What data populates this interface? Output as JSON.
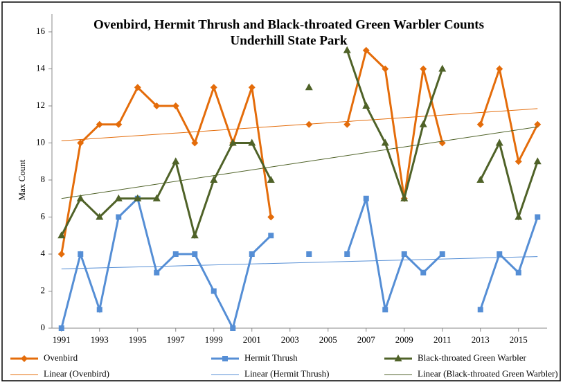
{
  "chart_data": {
    "type": "line",
    "title": "Ovenbird, Hermit Thrush and Black-throated Green Warbler Counts",
    "subtitle": "Underhill State Park",
    "y_label": "Max Count",
    "x": [
      1991,
      1992,
      1993,
      1994,
      1995,
      1996,
      1997,
      1998,
      1999,
      2000,
      2001,
      2002,
      2003,
      2004,
      2005,
      2006,
      2007,
      2008,
      2009,
      2010,
      2011,
      2012,
      2013,
      2014,
      2015,
      2016
    ],
    "series": [
      {
        "name": "Ovenbird",
        "color": "#e46c0a",
        "marker": "diamond",
        "trend_name": "Linear (Ovenbird)",
        "values": [
          4,
          10,
          11,
          11,
          13,
          12,
          12,
          10,
          13,
          10,
          13,
          6,
          null,
          11,
          null,
          11,
          15,
          14,
          7,
          14,
          10,
          null,
          11,
          14,
          9,
          11
        ]
      },
      {
        "name": "Hermit Thrush",
        "color": "#558ed5",
        "marker": "square",
        "trend_name": "Linear (Hermit Thrush)",
        "values": [
          0,
          4,
          1,
          6,
          7,
          3,
          4,
          4,
          2,
          0,
          4,
          5,
          null,
          4,
          null,
          4,
          7,
          1,
          4,
          3,
          4,
          null,
          1,
          4,
          3,
          6
        ]
      },
      {
        "name": "Black-throated Green Warbler",
        "color": "#4f6228",
        "marker": "triangle",
        "trend_name": "Linear (Black-throated Green Warbler)",
        "values": [
          5,
          7,
          6,
          7,
          7,
          7,
          9,
          5,
          8,
          10,
          10,
          8,
          null,
          13,
          null,
          15,
          12,
          10,
          7,
          11,
          14,
          null,
          8,
          10,
          6,
          9
        ]
      }
    ],
    "xlim": [
      1990.5,
      2016.5
    ],
    "xticks": [
      1991,
      1993,
      1995,
      1997,
      1999,
      2001,
      2003,
      2005,
      2007,
      2009,
      2011,
      2013,
      2015
    ],
    "ylim": [
      0,
      16
    ],
    "yticks": [
      0,
      2,
      4,
      6,
      8,
      10,
      12,
      14,
      16
    ],
    "grid": false,
    "legend": "bottom"
  }
}
